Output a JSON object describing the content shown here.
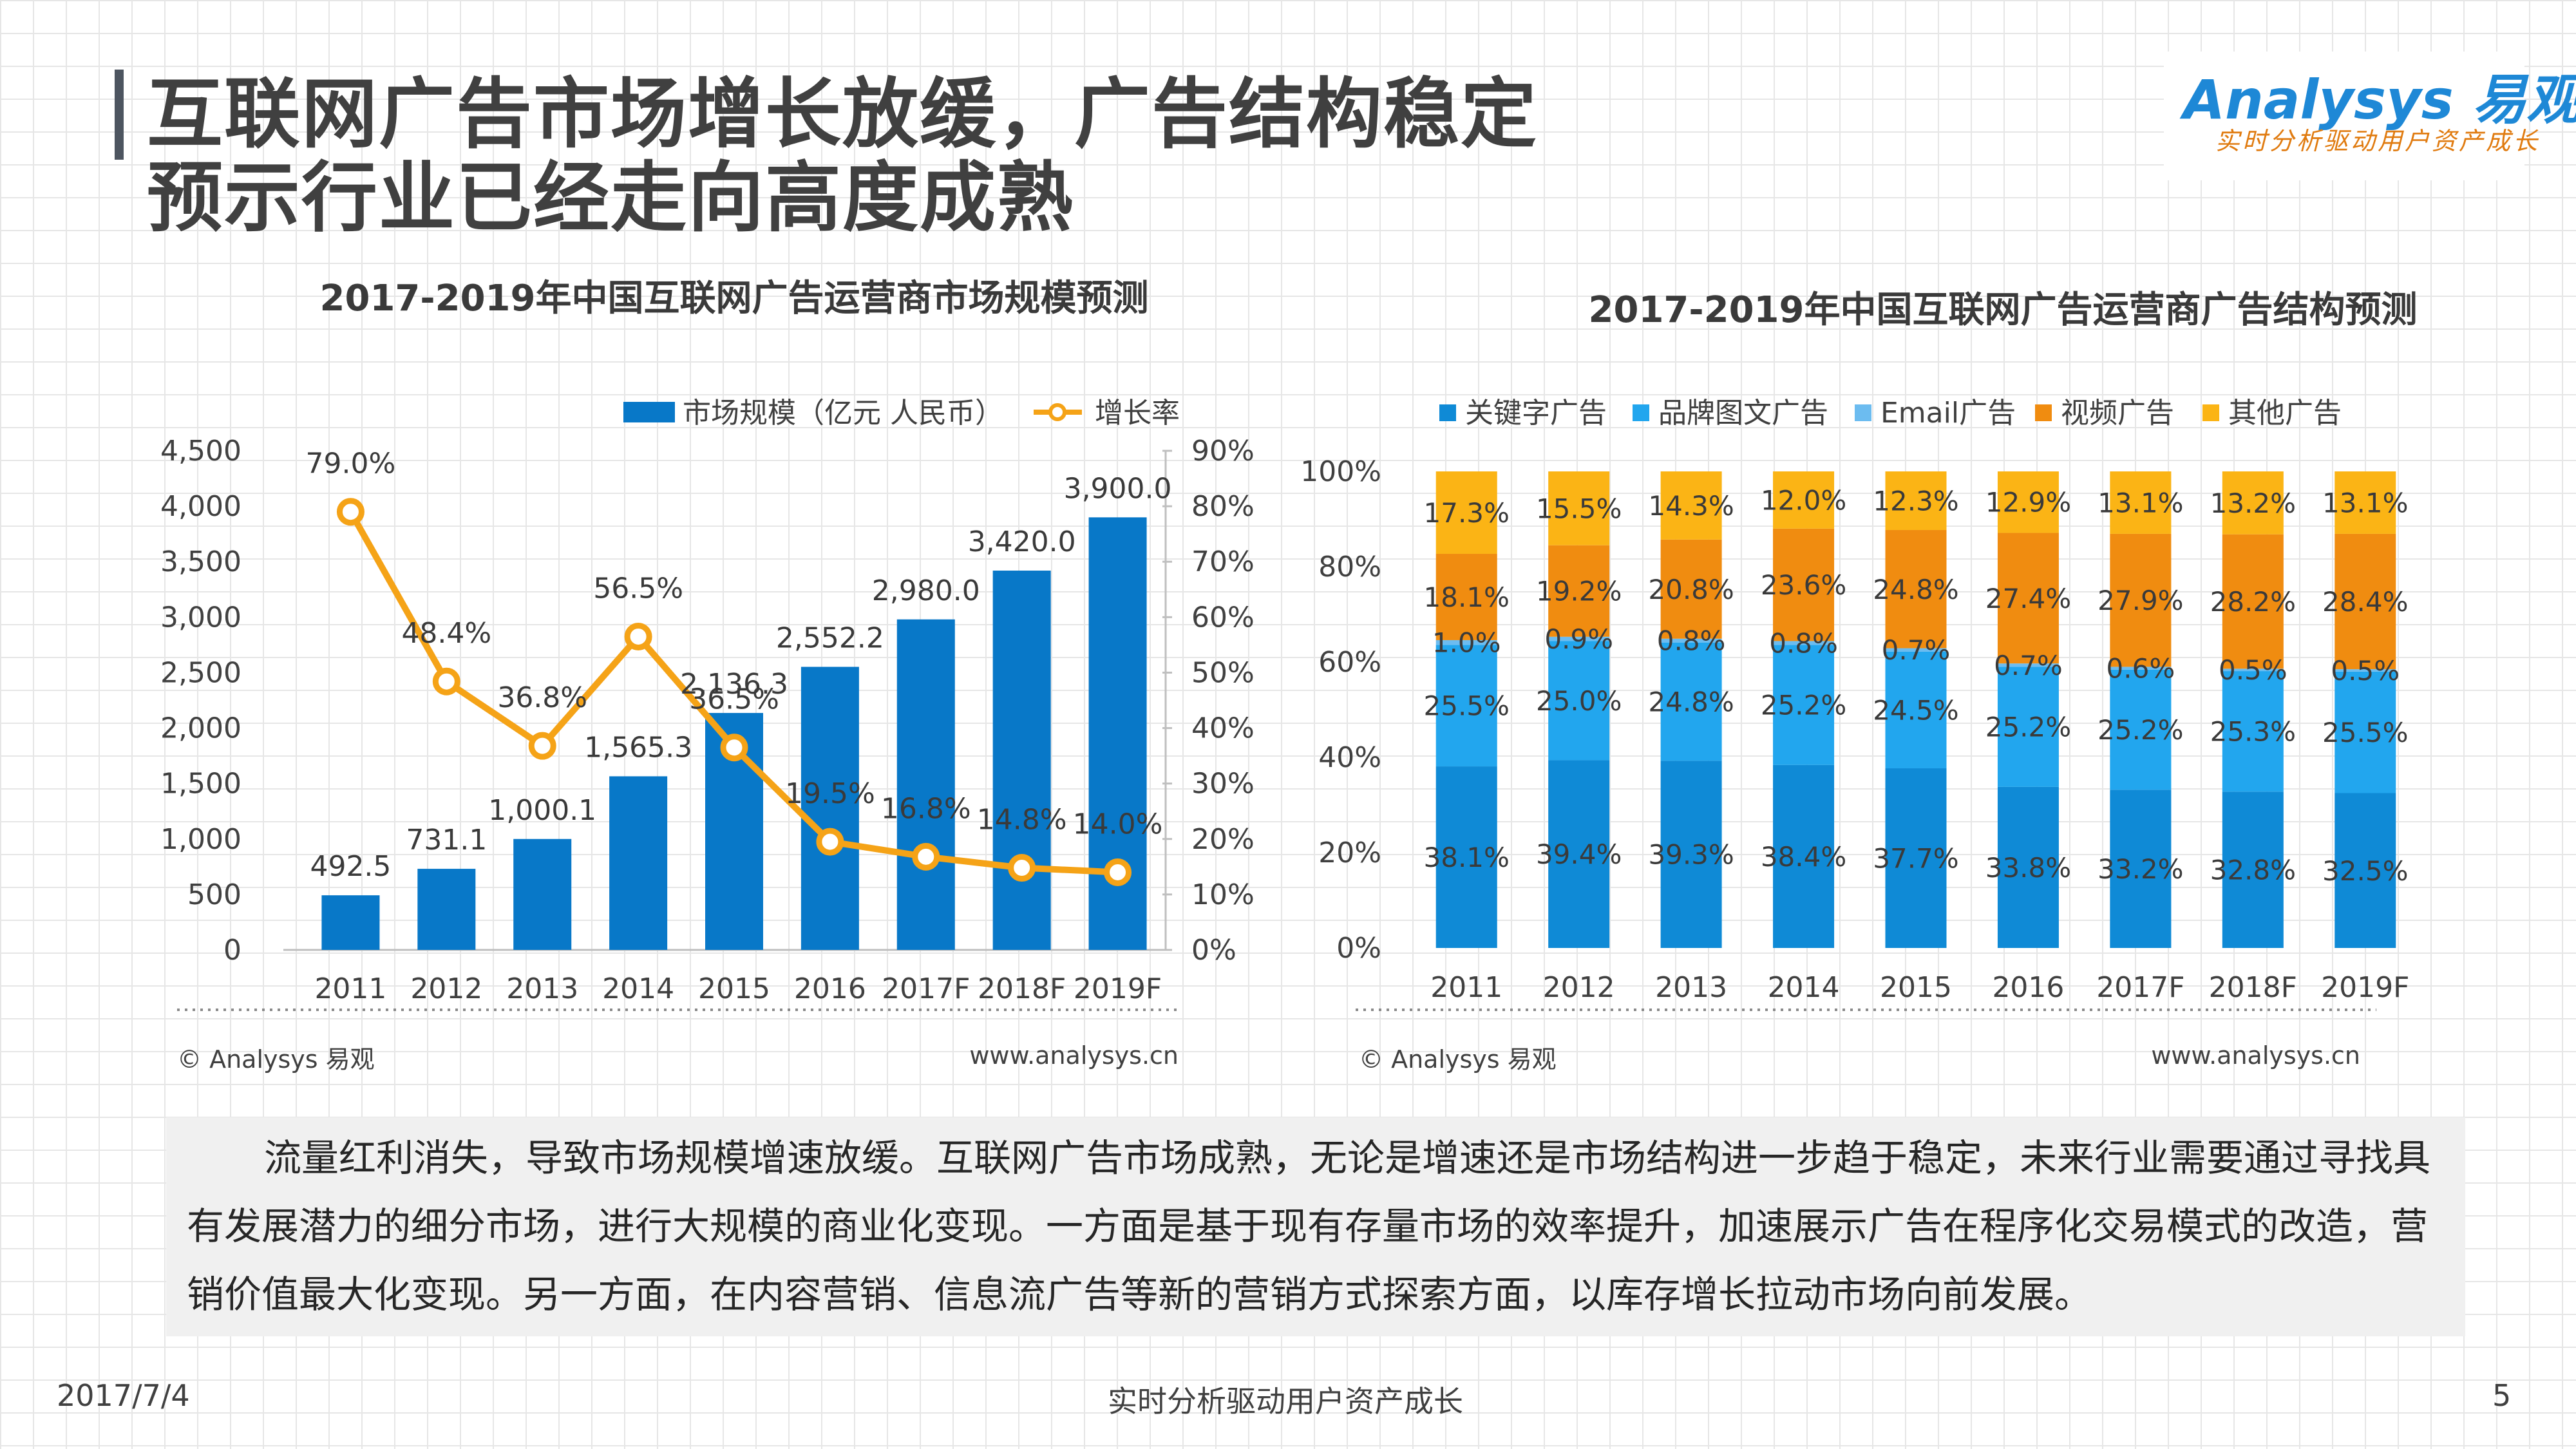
{
  "slide": {
    "title_line1": "互联网广告市场增长放缓，广告结构稳定",
    "title_line2": "预示行业已经走向高度成熟",
    "logo_main": "Analysys 易观",
    "logo_sub": "实时分析驱动用户资产成长",
    "note": "流量红利消失，导致市场规模增速放缓。互联网广告市场成熟，无论是增速还是市场结构进一步趋于稳定，未来行业需要通过寻找具有发展潜力的细分市场，进行大规模的商业化变现。一方面是基于现有存量市场的效率提升，加速展示广告在程序化交易模式的改造，营销价值最大化变现。另一方面，在内容营销、信息流广告等新的营销方式探索方面，以库存增长拉动市场向前发展。",
    "date": "2017/7/4",
    "footer_center": "实时分析驱动用户资产成长",
    "page_number": "5",
    "source_left": "© Analysys 易观",
    "source_right": "www.analysys.cn"
  },
  "colors": {
    "bar_blue": "#0878c8",
    "line_orange": "#f5a317",
    "seg_keyword": "#0f8ad6",
    "seg_brand": "#22a6ee",
    "seg_email": "#6cbcf0",
    "seg_video": "#f08c10",
    "seg_other": "#fbb415"
  },
  "chart_data": [
    {
      "type": "bar+line",
      "title": "2017-2019年中国互联网广告运营商市场规模预测",
      "categories": [
        "2011",
        "2012",
        "2013",
        "2014",
        "2015",
        "2016",
        "2017F",
        "2018F",
        "2019F"
      ],
      "series": [
        {
          "name": "市场规模（亿元 人民币）",
          "type": "bar",
          "axis": "left",
          "values": [
            492.5,
            731.1,
            1000.1,
            1565.3,
            2136.3,
            2552.2,
            2980.0,
            3420.0,
            3900.0
          ],
          "labels": [
            "492.5",
            "731.1",
            "1,000.1",
            "1,565.3",
            "2,136.3",
            "2,552.2",
            "2,980.0",
            "3,420.0",
            "3,900.0"
          ]
        },
        {
          "name": "增长率",
          "type": "line",
          "axis": "right",
          "values": [
            79.0,
            48.4,
            36.8,
            56.5,
            36.5,
            19.5,
            16.8,
            14.8,
            14.0
          ],
          "labels": [
            "79.0%",
            "48.4%",
            "36.8%",
            "56.5%",
            "36.5%",
            "19.5%",
            "16.8%",
            "14.8%",
            "14.0%"
          ]
        }
      ],
      "ylim_left": [
        0,
        4500
      ],
      "yticks_left": [
        "0",
        "500",
        "1,000",
        "1,500",
        "2,000",
        "2,500",
        "3,000",
        "3,500",
        "4,000",
        "4,500"
      ],
      "ylim_right": [
        0,
        90
      ],
      "yticks_right": [
        "0%",
        "10%",
        "20%",
        "30%",
        "40%",
        "50%",
        "60%",
        "70%",
        "80%",
        "90%"
      ],
      "legend_position": "top"
    },
    {
      "type": "stacked-bar-100",
      "title": "2017-2019年中国互联网广告运营商广告结构预测",
      "categories": [
        "2011",
        "2012",
        "2013",
        "2014",
        "2015",
        "2016",
        "2017F",
        "2018F",
        "2019F"
      ],
      "series": [
        {
          "name": "关键字广告",
          "values": [
            38.1,
            39.4,
            39.3,
            38.4,
            37.7,
            33.8,
            33.2,
            32.8,
            32.5
          ],
          "labels": [
            "38.1%",
            "39.4%",
            "39.3%",
            "38.4%",
            "37.7%",
            "33.8%",
            "33.2%",
            "32.8%",
            "32.5%"
          ]
        },
        {
          "name": "品牌图文广告",
          "values": [
            25.5,
            25.0,
            24.8,
            25.2,
            24.5,
            25.2,
            25.2,
            25.3,
            25.5
          ],
          "labels": [
            "25.5%",
            "25.0%",
            "24.8%",
            "25.2%",
            "24.5%",
            "25.2%",
            "25.2%",
            "25.3%",
            "25.5%"
          ]
        },
        {
          "name": "Email广告",
          "values": [
            1.0,
            0.9,
            0.8,
            0.8,
            0.7,
            0.7,
            0.6,
            0.5,
            0.5
          ],
          "labels": [
            "1.0%",
            "0.9%",
            "0.8%",
            "0.8%",
            "0.7%",
            "0.7%",
            "0.6%",
            "0.5%",
            "0.5%"
          ]
        },
        {
          "name": "视频广告",
          "values": [
            18.1,
            19.2,
            20.8,
            23.6,
            24.8,
            27.4,
            27.9,
            28.2,
            28.4
          ],
          "labels": [
            "18.1%",
            "19.2%",
            "20.8%",
            "23.6%",
            "24.8%",
            "27.4%",
            "27.9%",
            "28.2%",
            "28.4%"
          ]
        },
        {
          "name": "其他广告",
          "values": [
            17.3,
            15.5,
            14.3,
            12.0,
            12.3,
            12.9,
            13.1,
            13.2,
            13.1
          ],
          "labels": [
            "17.3%",
            "15.5%",
            "14.3%",
            "12.0%",
            "12.3%",
            "12.9%",
            "13.1%",
            "13.2%",
            "13.1%"
          ]
        }
      ],
      "ylim": [
        0,
        100
      ],
      "yticks": [
        "0%",
        "20%",
        "40%",
        "60%",
        "80%",
        "100%"
      ],
      "legend_position": "top"
    }
  ]
}
